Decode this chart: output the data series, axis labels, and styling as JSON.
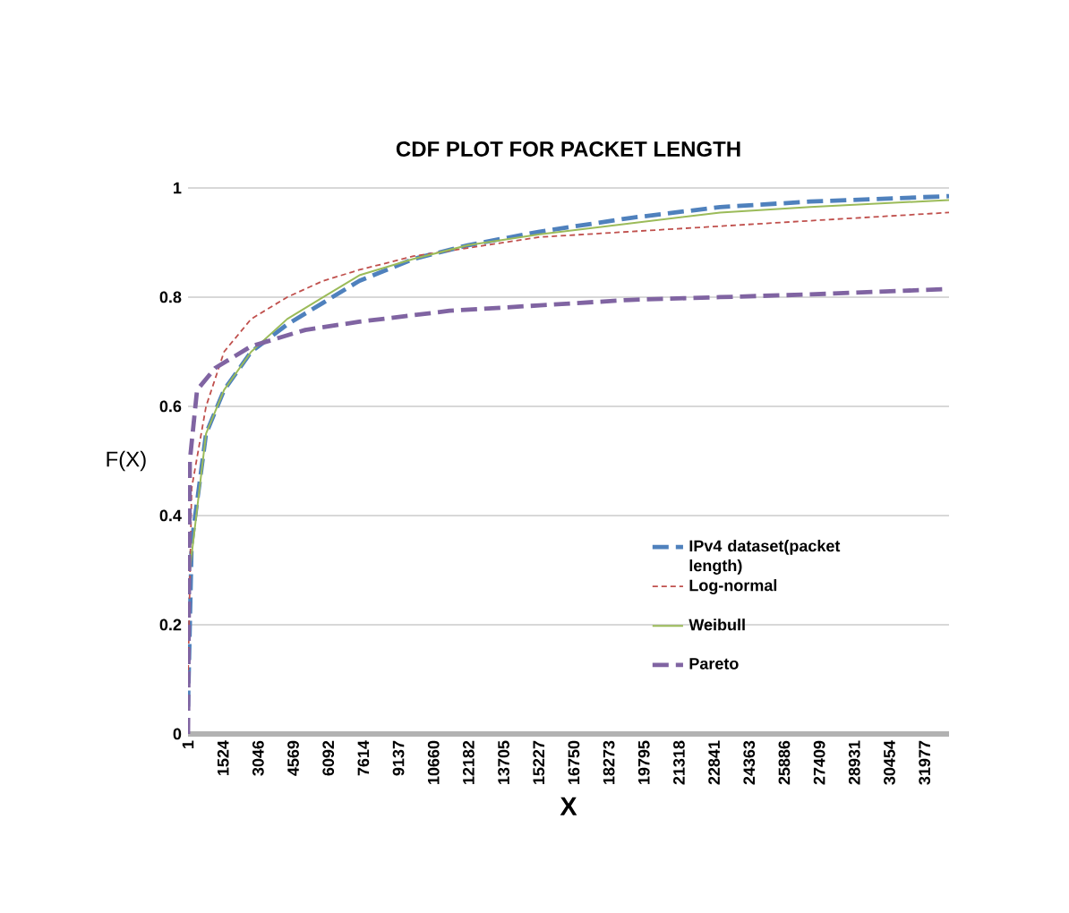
{
  "chart_data": {
    "type": "line",
    "title": "CDF PLOT FOR PACKET LENGTH",
    "xlabel": "X",
    "ylabel": "F(X)",
    "xlim": [
      1,
      33040
    ],
    "ylim": [
      0,
      1
    ],
    "xticks": [
      1,
      1524,
      3046,
      4569,
      6092,
      7614,
      9137,
      10660,
      12182,
      13705,
      15227,
      16750,
      18273,
      19795,
      21318,
      22841,
      24363,
      25886,
      27409,
      28931,
      30454,
      31977
    ],
    "yticks": [
      0,
      0.2,
      0.4,
      0.6,
      0.8,
      1
    ],
    "grid": "y",
    "legend": "right",
    "marker": "none",
    "series": [
      {
        "name": "IPv4 dataset(packet length)",
        "color": "#4f81bd",
        "line_style": "dashed",
        "x": [
          1,
          158,
          784,
          1567,
          2742,
          4308,
          5874,
          7440,
          9789,
          12138,
          15270,
          19185,
          23100,
          27015,
          33040
        ],
        "values": [
          0.05,
          0.35,
          0.55,
          0.63,
          0.7,
          0.75,
          0.79,
          0.83,
          0.87,
          0.895,
          0.92,
          0.945,
          0.965,
          0.975,
          0.985
        ]
      },
      {
        "name": "Log-normal",
        "color": "#c0504d",
        "line_style": "dotted",
        "x": [
          1,
          158,
          784,
          1567,
          2742,
          4308,
          5874,
          7440,
          9789,
          12138,
          15270,
          19185,
          23100,
          27015,
          33040
        ],
        "values": [
          0.1,
          0.45,
          0.6,
          0.7,
          0.76,
          0.8,
          0.83,
          0.85,
          0.875,
          0.89,
          0.91,
          0.92,
          0.93,
          0.94,
          0.955
        ]
      },
      {
        "name": "Weibull",
        "color": "#9bbb59",
        "line_style": "solid",
        "x": [
          79,
          784,
          1567,
          2742,
          4308,
          5874,
          7440,
          9789,
          12138,
          15270,
          19185,
          23100,
          27015,
          33040
        ],
        "values": [
          0.3,
          0.55,
          0.63,
          0.7,
          0.76,
          0.8,
          0.84,
          0.87,
          0.895,
          0.915,
          0.935,
          0.955,
          0.965,
          0.978
        ]
      },
      {
        "name": "Pareto",
        "color": "#8064a2",
        "line_style": "dashed",
        "x": [
          1,
          79,
          393,
          1175,
          2742,
          5090,
          7440,
          11355,
          15270,
          19185,
          23100,
          27015,
          33040
        ],
        "values": [
          0,
          0.5,
          0.63,
          0.67,
          0.71,
          0.74,
          0.755,
          0.775,
          0.785,
          0.795,
          0.8,
          0.805,
          0.815
        ]
      }
    ]
  }
}
